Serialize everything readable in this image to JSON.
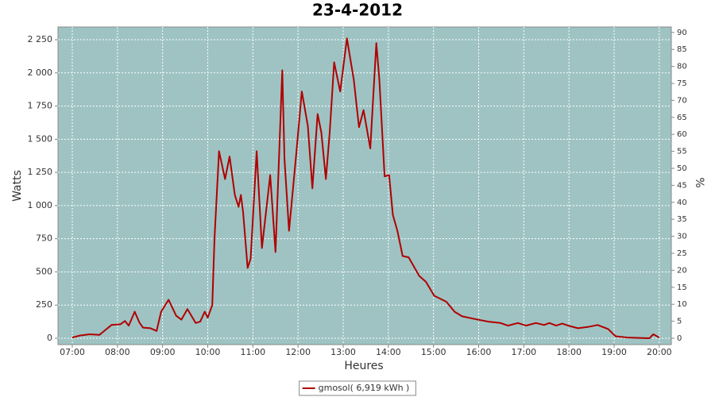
{
  "chart_data": {
    "type": "line",
    "title": "23-4-2012",
    "xlabel": "Heures",
    "ylabel": "Watts",
    "y2label": "%",
    "x": [
      "07:00",
      "07:10",
      "07:23",
      "07:36",
      "07:52",
      "08:04",
      "08:10",
      "08:15",
      "08:23",
      "08:29",
      "08:34",
      "08:44",
      "08:52",
      "08:58",
      "09:08",
      "09:18",
      "09:25",
      "09:33",
      "09:44",
      "09:50",
      "09:56",
      "10:00",
      "10:06",
      "10:09",
      "10:15",
      "10:23",
      "10:29",
      "10:36",
      "10:41",
      "10:44",
      "10:47",
      "10:53",
      "10:57",
      "11:05",
      "11:12",
      "11:23",
      "11:30",
      "11:39",
      "11:42",
      "11:48",
      "11:57",
      "12:05",
      "12:13",
      "12:19",
      "12:26",
      "12:31",
      "12:37",
      "12:42",
      "12:48",
      "12:56",
      "13:05",
      "13:14",
      "13:21",
      "13:27",
      "13:36",
      "13:44",
      "13:48",
      "13:55",
      "14:01",
      "14:06",
      "14:12",
      "14:19",
      "14:27",
      "14:41",
      "14:50",
      "15:01",
      "15:17",
      "15:28",
      "15:38",
      "15:55",
      "16:13",
      "16:29",
      "16:39",
      "16:52",
      "17:03",
      "17:16",
      "17:27",
      "17:34",
      "17:43",
      "17:51",
      "17:59",
      "18:12",
      "18:25",
      "18:38",
      "18:52",
      "19:02",
      "19:18",
      "19:47",
      "19:52",
      "20:00"
    ],
    "series": [
      {
        "name": "gmosol( 6,919 kWh )",
        "color": "#b00000",
        "values": [
          5,
          20,
          30,
          25,
          100,
          105,
          130,
          95,
          200,
          120,
          80,
          75,
          55,
          200,
          290,
          170,
          140,
          220,
          115,
          125,
          200,
          155,
          250,
          750,
          1410,
          1200,
          1370,
          1080,
          990,
          1080,
          950,
          530,
          600,
          1410,
          680,
          1230,
          650,
          2020,
          1350,
          810,
          1350,
          1860,
          1600,
          1130,
          1690,
          1550,
          1200,
          1550,
          2080,
          1860,
          2260,
          1950,
          1590,
          1720,
          1430,
          2225,
          1950,
          1220,
          1230,
          930,
          810,
          620,
          610,
          470,
          425,
          320,
          275,
          200,
          165,
          145,
          125,
          115,
          95,
          115,
          95,
          115,
          100,
          115,
          95,
          110,
          95,
          75,
          85,
          100,
          70,
          15,
          5,
          0,
          30,
          5
        ]
      }
    ],
    "xlim": [
      "06:41",
      "20:16"
    ],
    "xticks": [
      "07:00",
      "08:00",
      "09:00",
      "10:00",
      "11:00",
      "12:00",
      "13:00",
      "14:00",
      "15:00",
      "16:00",
      "17:00",
      "18:00",
      "19:00",
      "20:00"
    ],
    "ylim": [
      -48,
      2346
    ],
    "yticks": [
      0,
      250,
      500,
      750,
      {
        "value": 1000,
        "label": "1 000"
      },
      {
        "value": 1250,
        "label": "1 250"
      },
      {
        "value": 1500,
        "label": "1 500"
      },
      {
        "value": 1750,
        "label": "1 750"
      },
      {
        "value": 2000,
        "label": "2 000"
      },
      {
        "value": 2250,
        "label": "2 250"
      }
    ],
    "y2lim": [
      -1.87,
      91.6
    ],
    "y2ticks": [
      0,
      5,
      10,
      15,
      20,
      25,
      30,
      35,
      40,
      45,
      50,
      55,
      60,
      65,
      70,
      75,
      80,
      85,
      90
    ],
    "grid": true,
    "background": "#9fc3c3",
    "legend": "bottom"
  }
}
